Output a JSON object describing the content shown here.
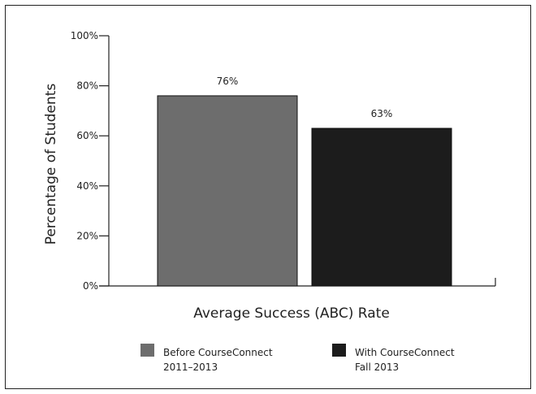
{
  "chart_data": {
    "type": "bar",
    "categories": [
      "Before CourseConnect 2011–2013",
      "With CourseConnect Fall 2013"
    ],
    "values": [
      76,
      63
    ],
    "data_labels": [
      "76%",
      "63%"
    ],
    "colors": [
      "#6d6d6d",
      "#1c1c1c"
    ],
    "ylabel": "Percentage of Students",
    "xlabel": "Average Success (ABC) Rate",
    "ylim": [
      0,
      100
    ],
    "yticks": [
      {
        "value": 0,
        "label": "0%"
      },
      {
        "value": 20,
        "label": "20%"
      },
      {
        "value": 40,
        "label": "40%"
      },
      {
        "value": 60,
        "label": "60%"
      },
      {
        "value": 80,
        "label": "80%"
      },
      {
        "value": 100,
        "label": "100%"
      }
    ],
    "grid": false,
    "legend_position": "bottom",
    "legend": [
      {
        "line1": "Before CourseConnect",
        "line2": "2011–2013",
        "color": "#6d6d6d"
      },
      {
        "line1": "With CourseConnect",
        "line2": "Fall 2013",
        "color": "#1c1c1c"
      }
    ]
  }
}
